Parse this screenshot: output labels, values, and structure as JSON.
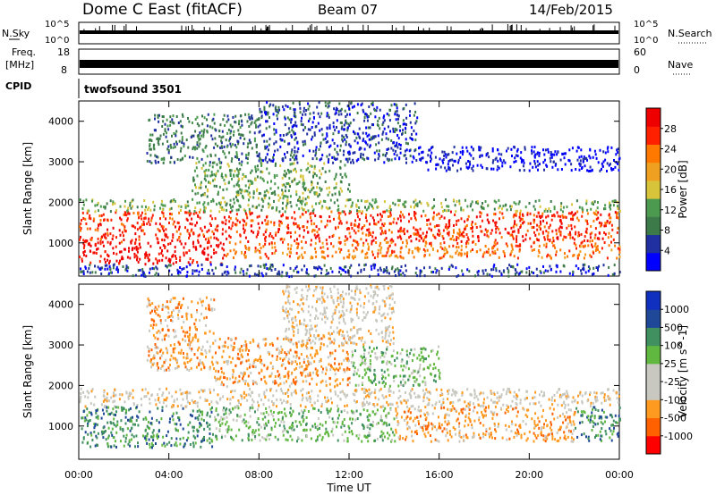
{
  "header": {
    "station": "Dome C East (fitACF)",
    "beam": "Beam 07",
    "date": "14/Feb/2015"
  },
  "strips": {
    "nsky_label": "N.Sky",
    "nsky_ticks": [
      "10^5",
      "10^0"
    ],
    "nsearch_label": "N.Search",
    "nsearch_ticks": [
      "10^5",
      "10^0"
    ],
    "freq_label": "Freq.",
    "freq_unit": "[MHz]",
    "freq_ticks": [
      "18",
      "8"
    ],
    "nave_label": "Nave",
    "nave_ticks": [
      "60",
      "0"
    ],
    "cpid_label": "CPID",
    "cpid_value": "twofsound 3501"
  },
  "colors": {
    "power": [
      "#0000ff",
      "#2030a0",
      "#3d7a4a",
      "#4c9a50",
      "#d8c43a",
      "#f0a020",
      "#ff7800",
      "#ff2000",
      "#ee0000"
    ],
    "velocity": [
      "#ff0000",
      "#ff6000",
      "#ff9a20",
      "#c8c8c0",
      "#c8c8c0",
      "#60b840",
      "#409060",
      "#204898",
      "#1030c0"
    ]
  },
  "chart_data": [
    {
      "type": "heatmap",
      "name": "power-panel",
      "ylabel": "Slant Range [km]",
      "xlabel": "",
      "xlim": [
        0,
        24
      ],
      "ylim": [
        180,
        4500
      ],
      "x_tick_values": [
        0,
        4,
        8,
        12,
        16,
        20,
        24
      ],
      "x_ticks": [
        "00:00",
        "04:00",
        "08:00",
        "12:00",
        "16:00",
        "20:00",
        "00:00"
      ],
      "y_tick_values": [
        1000,
        2000,
        3000,
        4000
      ],
      "y_ticks": [
        "1000",
        "2000",
        "3000",
        "4000"
      ],
      "colorbar_label": "Power [dB]",
      "colorbar_ticks": [
        "4",
        "8",
        "12",
        "16",
        "20",
        "24",
        "28"
      ],
      "colorbar_range": [
        0,
        32
      ],
      "regions": [
        {
          "t0": 0,
          "t1": 24,
          "r0": 1050,
          "r1": 1800,
          "level": 7
        },
        {
          "t0": 0,
          "t1": 6.5,
          "r0": 500,
          "r1": 1050,
          "level": 8
        },
        {
          "t0": 6.5,
          "t1": 24,
          "r0": 650,
          "r1": 1050,
          "level": 6
        },
        {
          "t0": 0,
          "t1": 24,
          "r0": 1800,
          "r1": 2100,
          "level": 3
        },
        {
          "t0": 5,
          "t1": 12,
          "r0": 2100,
          "r1": 3000,
          "level": 3
        },
        {
          "t0": 3,
          "t1": 8,
          "r0": 3000,
          "r1": 4200,
          "level": 2
        },
        {
          "t0": 8,
          "t1": 15,
          "r0": 3000,
          "r1": 4500,
          "level": 1
        },
        {
          "t0": 15,
          "t1": 24,
          "r0": 2800,
          "r1": 3400,
          "level": 0
        },
        {
          "t0": 0,
          "t1": 24,
          "r0": 200,
          "r1": 500,
          "level": 1
        }
      ]
    },
    {
      "type": "heatmap",
      "name": "velocity-panel",
      "ylabel": "Slant Range [km]",
      "xlabel": "Time UT",
      "xlim": [
        0,
        24
      ],
      "ylim": [
        180,
        4500
      ],
      "x_tick_values": [
        0,
        4,
        8,
        12,
        16,
        20,
        24
      ],
      "x_ticks": [
        "00:00",
        "04:00",
        "08:00",
        "12:00",
        "16:00",
        "20:00",
        "00:00"
      ],
      "y_tick_values": [
        1000,
        2000,
        3000,
        4000
      ],
      "y_ticks": [
        "1000",
        "2000",
        "3000",
        "4000"
      ],
      "colorbar_label": "Velocity [m s^-1]",
      "colorbar_ticks": [
        "-1000",
        "-500",
        "-100",
        "-25",
        "25",
        "100",
        "500",
        "1000"
      ],
      "regions": [
        {
          "t0": 0,
          "t1": 24,
          "r0": 1500,
          "r1": 1950,
          "level": 3
        },
        {
          "t0": 0,
          "t1": 6,
          "r0": 500,
          "r1": 1500,
          "level": 6
        },
        {
          "t0": 6,
          "t1": 14,
          "r0": 650,
          "r1": 1500,
          "level": 5
        },
        {
          "t0": 14,
          "t1": 22,
          "r0": 650,
          "r1": 1500,
          "level": 2
        },
        {
          "t0": 22,
          "t1": 24,
          "r0": 650,
          "r1": 1500,
          "level": 6
        },
        {
          "t0": 6,
          "t1": 12,
          "r0": 2000,
          "r1": 3200,
          "level": 2
        },
        {
          "t0": 9,
          "t1": 14,
          "r0": 3000,
          "r1": 4500,
          "level": 3
        },
        {
          "t0": 12,
          "t1": 16,
          "r0": 2000,
          "r1": 3000,
          "level": 5
        },
        {
          "t0": 3,
          "t1": 6,
          "r0": 2400,
          "r1": 4200,
          "level": 2
        }
      ]
    }
  ]
}
